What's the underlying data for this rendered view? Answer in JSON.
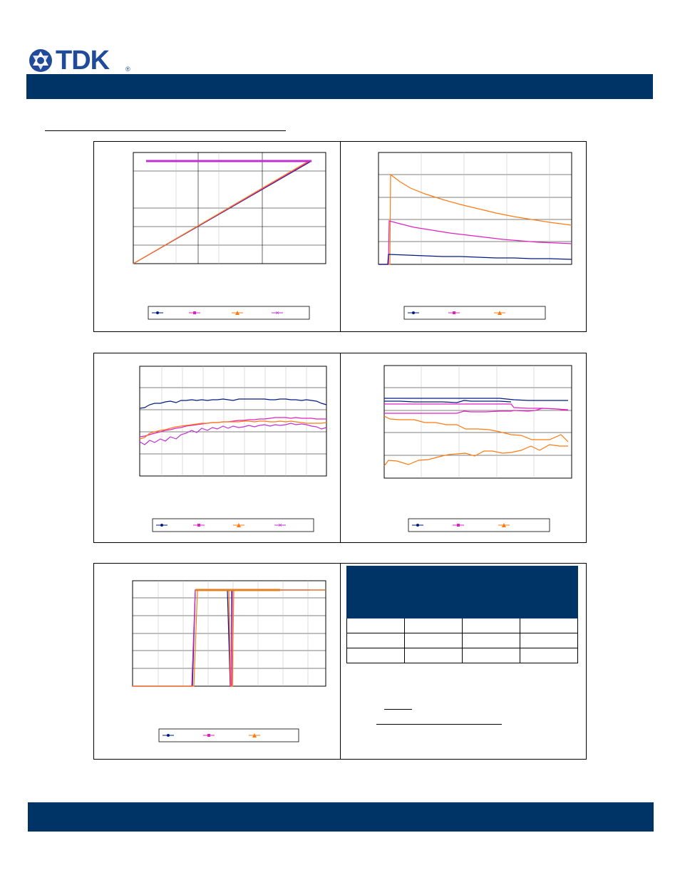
{
  "brand": {
    "logo_text": "TDK",
    "registered_mark": "®",
    "colors": {
      "band": "#003366",
      "logo": "#1f4b9a"
    }
  },
  "series_colors": {
    "navy": "#001a80",
    "magenta": "#e020c0",
    "orange": "#ff7a10",
    "purple": "#c030d0"
  },
  "charts": {
    "chart1": {
      "legend_entries": 4,
      "markers": [
        "diamond",
        "square",
        "triangle",
        "x"
      ]
    },
    "chart2": {
      "legend_entries": 3,
      "markers": [
        "diamond",
        "square",
        "triangle"
      ]
    },
    "chart3": {
      "legend_entries": 4,
      "markers": [
        "diamond",
        "square",
        "triangle",
        "x"
      ]
    },
    "chart4": {
      "legend_entries": 3,
      "markers": [
        "diamond",
        "square",
        "triangle"
      ]
    },
    "chart5": {
      "legend_entries": 3,
      "markers": [
        "diamond",
        "square",
        "triangle"
      ]
    }
  },
  "table": {
    "rows": 3,
    "columns": 4
  }
}
